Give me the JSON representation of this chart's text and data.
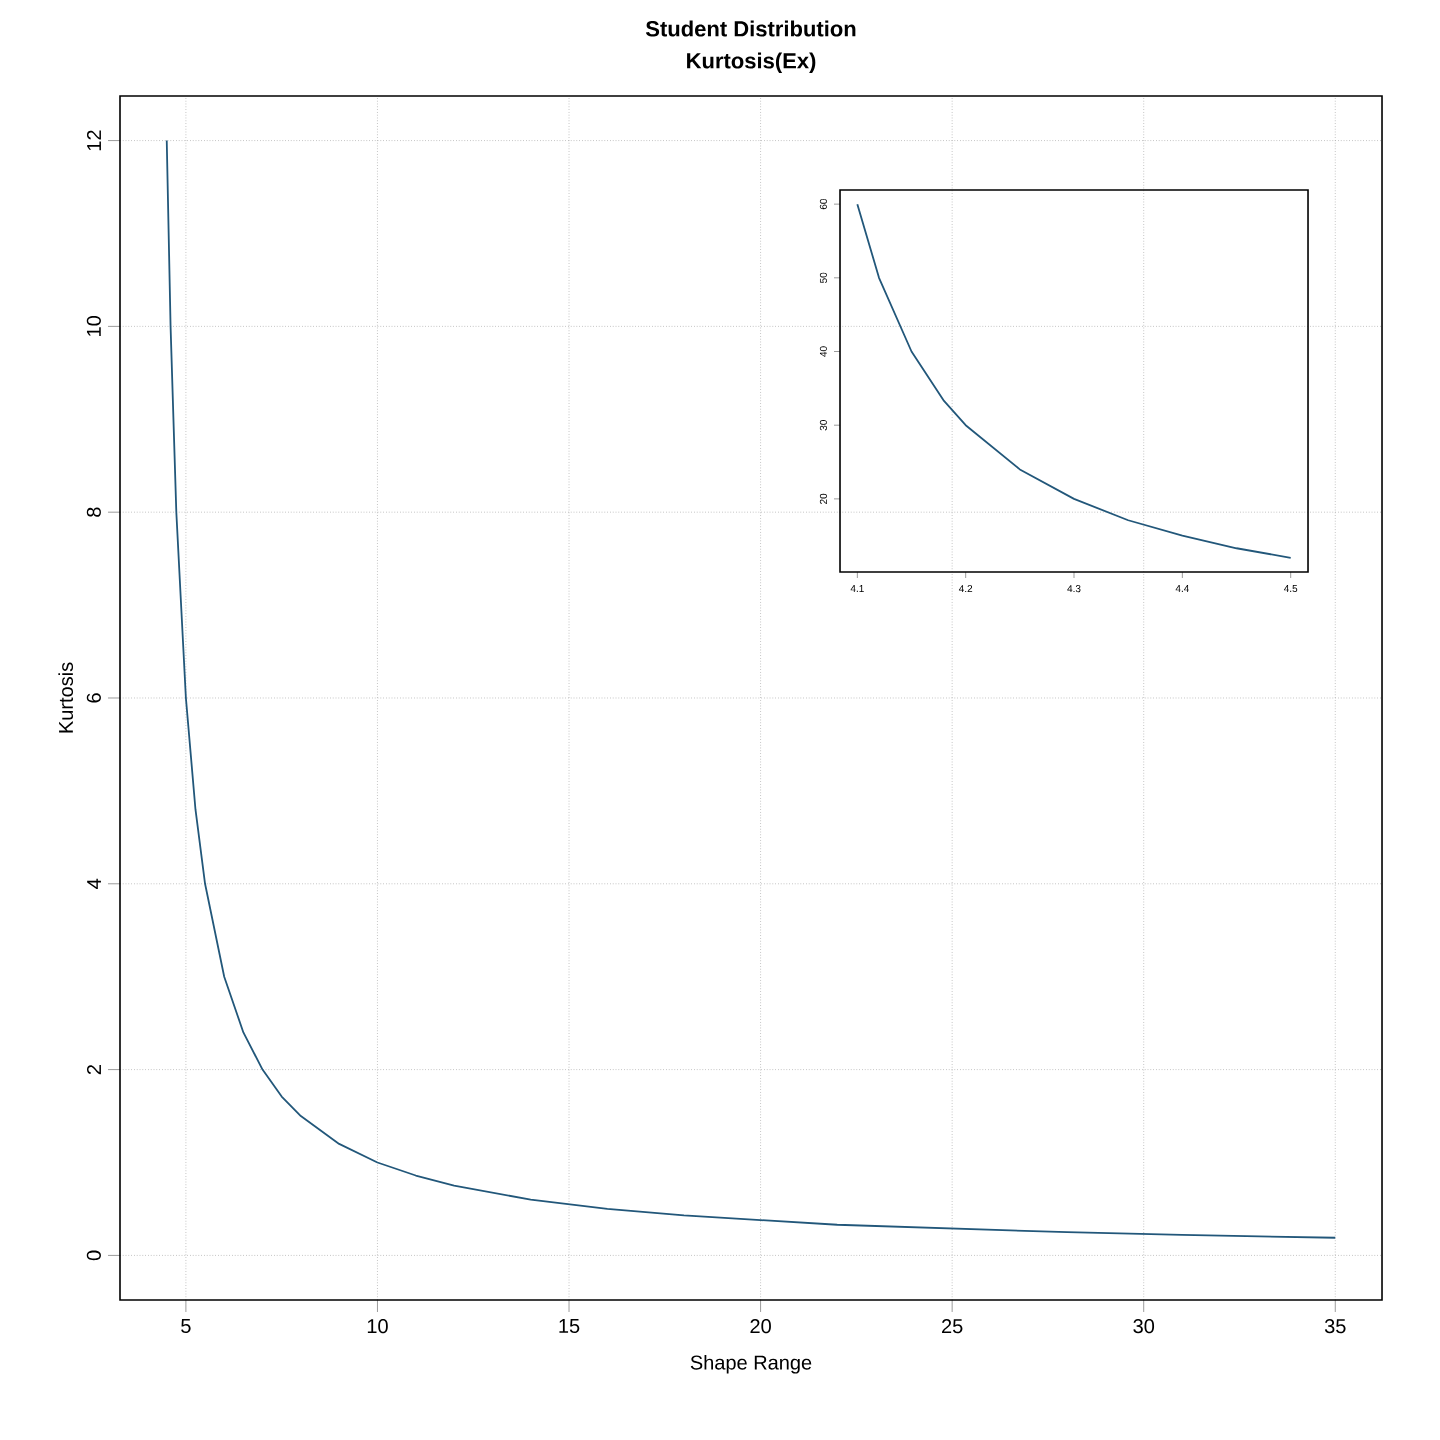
{
  "chart_data": [
    {
      "type": "line",
      "title": "Student Distribution",
      "subtitle": "Kurtosis(Ex)",
      "xlabel": "Shape Range",
      "ylabel": "Kurtosis",
      "x": [
        4.5,
        4.6,
        4.75,
        5,
        5.25,
        5.5,
        6,
        6.5,
        7,
        7.5,
        8,
        9,
        10,
        11,
        12,
        14,
        16,
        18,
        20,
        22,
        25,
        28,
        31,
        35
      ],
      "series": [
        {
          "color": "#22577a",
          "values": [
            12,
            10,
            8,
            6,
            4.8,
            4,
            3,
            2.4,
            2,
            1.71,
            1.5,
            1.2,
            1,
            0.86,
            0.75,
            0.6,
            0.5,
            0.43,
            0.38,
            0.33,
            0.29,
            0.25,
            0.22,
            0.19
          ]
        }
      ],
      "xlim": [
        3.28,
        36.22
      ],
      "ylim": [
        -0.48,
        12.48
      ],
      "xticks": [
        5,
        10,
        15,
        20,
        25,
        30,
        35
      ],
      "yticks": [
        0,
        2,
        4,
        6,
        8,
        10,
        12
      ],
      "grid": true,
      "line_style": "solid"
    },
    {
      "type": "line",
      "x": [
        4.1,
        4.12,
        4.15,
        4.18,
        4.2,
        4.25,
        4.3,
        4.35,
        4.4,
        4.45,
        4.5
      ],
      "series": [
        {
          "color": "#22577a",
          "values": [
            60,
            50,
            40,
            33.3,
            30,
            24,
            20,
            17.1,
            15,
            13.3,
            12
          ]
        }
      ],
      "xlim": [
        4.084,
        4.516
      ],
      "ylim": [
        10.08,
        61.92
      ],
      "xticks": [
        4.1,
        4.2,
        4.3,
        4.4,
        4.5
      ],
      "yticks": [
        20,
        30,
        40,
        50,
        60
      ],
      "line_style": "solid"
    }
  ]
}
